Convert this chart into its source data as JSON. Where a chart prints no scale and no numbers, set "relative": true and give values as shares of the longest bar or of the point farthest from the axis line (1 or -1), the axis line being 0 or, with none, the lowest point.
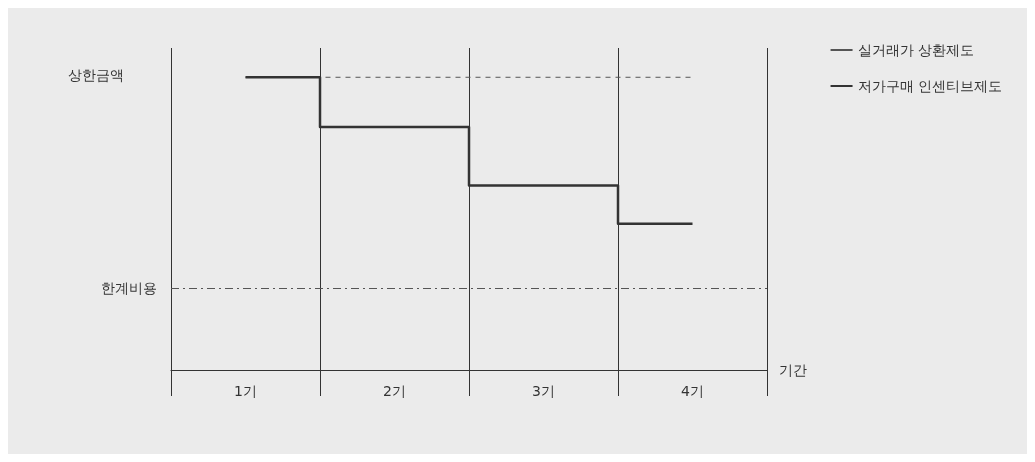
{
  "chart_data": {
    "type": "step",
    "relative": true,
    "categories": [
      "1기",
      "2기",
      "3기",
      "4기"
    ],
    "xlabel": "기간",
    "series": [
      {
        "name": "실거래가 상환제도",
        "color": "#555555",
        "line_style": "dashed",
        "values": [
          1,
          1,
          1,
          1
        ]
      },
      {
        "name": "저가구매 인센티브제도",
        "color": "#333333",
        "line_style": "solid",
        "values": [
          1,
          0.83,
          0.63,
          0.5
        ]
      }
    ],
    "ref_lines": [
      {
        "axis": "y",
        "value": 0.28,
        "label": "한계비용",
        "color": "#555555",
        "line_style": "dashed"
      }
    ],
    "annotations": [
      "상한금액"
    ],
    "grid": "x",
    "legend": "top right",
    "marker": "none"
  }
}
